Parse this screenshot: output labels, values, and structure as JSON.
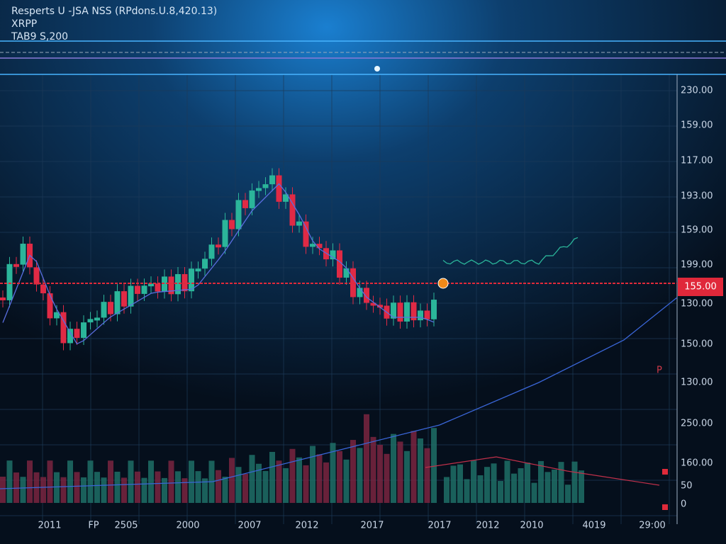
{
  "header": {
    "title": "Resperts U -JSA NSS (RPdons.U.8,420.13)",
    "symbol": "XRPP",
    "sub": "TAB9 S,200"
  },
  "y_axis_labels": [
    "230.00",
    "159.00",
    "117.00",
    "193.00",
    "159.00",
    "199.00",
    "130.00",
    "150.00",
    "130.00",
    "250.00",
    "160.00",
    "50",
    "0"
  ],
  "price_tag": "155.00",
  "marker_label": "P",
  "x_axis_labels": [
    "2011",
    "FP",
    "2505",
    "2000",
    "2007",
    "2012",
    "2017",
    "2017",
    "2012",
    "2010",
    "4019",
    "29:00"
  ]
}
